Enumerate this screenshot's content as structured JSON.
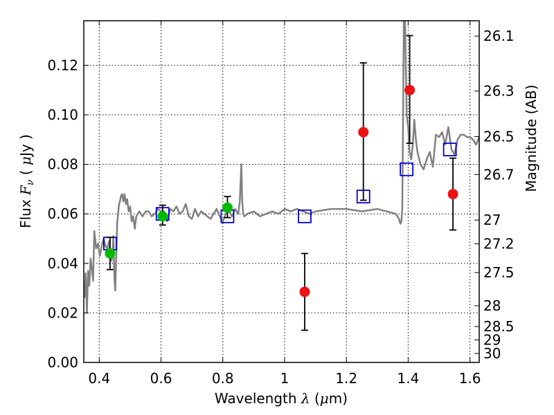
{
  "chart_data": {
    "type": "scatter",
    "xlim": [
      0.35,
      1.63
    ],
    "ylim": [
      0.0,
      0.138
    ],
    "grid": true,
    "xlabel": {
      "prefix": "Wavelength  ",
      "symbol": "λ",
      "mid": " (",
      "mu": "μ",
      "suffix": "m)"
    },
    "ylabel": {
      "prefix": "Flux  ",
      "symbol": "F",
      "sub": "ν",
      "mid": "  ( ",
      "mu": "μ",
      "suffix": "Jy )"
    },
    "y2label": "Magnitude (AB)",
    "xticks": [
      0.4,
      0.6,
      0.8,
      1.0,
      1.2,
      1.4,
      1.6
    ],
    "xtick_labels": [
      "0.4",
      "0.6",
      "0.8",
      "1",
      "1.2",
      "1.4",
      "1.6"
    ],
    "yticks": [
      0.0,
      0.02,
      0.04,
      0.06,
      0.08,
      0.1,
      0.12
    ],
    "ytick_labels": [
      "0.00",
      "0.02",
      "0.04",
      "0.06",
      "0.08",
      "0.10",
      "0.12"
    ],
    "mag_ticks": [
      {
        "label": "26.1",
        "flux": 0.1318
      },
      {
        "label": "26.3",
        "flux": 0.1096
      },
      {
        "label": "26.5",
        "flux": 0.0912
      },
      {
        "label": "26.7",
        "flux": 0.0759
      },
      {
        "label": "27",
        "flux": 0.0575
      },
      {
        "label": "27.2",
        "flux": 0.0479
      },
      {
        "label": "27.5",
        "flux": 0.0363
      },
      {
        "label": "28",
        "flux": 0.0229
      },
      {
        "label": "28.5",
        "flux": 0.0145
      },
      {
        "label": "29",
        "flux": 0.0091
      },
      {
        "label": "30",
        "flux": 0.0036
      }
    ],
    "colors": {
      "sed": "#808080",
      "model": "#0000cc",
      "green": "#00bb00",
      "red": "#ee1111",
      "errorbar": "#000000"
    },
    "series": [
      {
        "name": "sed_model",
        "kind": "line",
        "x": [
          0.352,
          0.356,
          0.36,
          0.364,
          0.368,
          0.372,
          0.376,
          0.38,
          0.384,
          0.39,
          0.396,
          0.402,
          0.408,
          0.414,
          0.42,
          0.426,
          0.432,
          0.436,
          0.44,
          0.443,
          0.446,
          0.449,
          0.452,
          0.455,
          0.458,
          0.461,
          0.464,
          0.467,
          0.47,
          0.474,
          0.478,
          0.482,
          0.486,
          0.49,
          0.495,
          0.5,
          0.505,
          0.51,
          0.515,
          0.52,
          0.53,
          0.54,
          0.55,
          0.56,
          0.57,
          0.58,
          0.59,
          0.6,
          0.61,
          0.62,
          0.63,
          0.64,
          0.65,
          0.66,
          0.67,
          0.68,
          0.69,
          0.7,
          0.71,
          0.72,
          0.73,
          0.74,
          0.75,
          0.76,
          0.77,
          0.78,
          0.79,
          0.8,
          0.81,
          0.82,
          0.83,
          0.84,
          0.85,
          0.855,
          0.86,
          0.863,
          0.866,
          0.87,
          0.88,
          0.9,
          0.92,
          0.94,
          0.96,
          0.98,
          1.0,
          1.02,
          1.04,
          1.06,
          1.08,
          1.1,
          1.15,
          1.2,
          1.25,
          1.3,
          1.33,
          1.36,
          1.37,
          1.375,
          1.378,
          1.381,
          1.383,
          1.386,
          1.39,
          1.395,
          1.4,
          1.405,
          1.41,
          1.415,
          1.42,
          1.425,
          1.43,
          1.44,
          1.45,
          1.46,
          1.47,
          1.48,
          1.49,
          1.5,
          1.51,
          1.52,
          1.53,
          1.54,
          1.55,
          1.56,
          1.57,
          1.58,
          1.59,
          1.6,
          1.61,
          1.62,
          1.63
        ],
        "y": [
          0.026,
          0.036,
          0.02,
          0.037,
          0.031,
          0.042,
          0.038,
          0.033,
          0.053,
          0.046,
          0.048,
          0.043,
          0.047,
          0.05,
          0.047,
          0.046,
          0.049,
          0.044,
          0.041,
          0.044,
          0.051,
          0.034,
          0.029,
          0.042,
          0.056,
          0.06,
          0.064,
          0.065,
          0.067,
          0.068,
          0.065,
          0.068,
          0.064,
          0.066,
          0.061,
          0.063,
          0.057,
          0.059,
          0.054,
          0.059,
          0.061,
          0.059,
          0.061,
          0.061,
          0.059,
          0.06,
          0.062,
          0.061,
          0.061,
          0.057,
          0.062,
          0.061,
          0.063,
          0.06,
          0.061,
          0.064,
          0.059,
          0.058,
          0.062,
          0.059,
          0.061,
          0.06,
          0.059,
          0.058,
          0.06,
          0.062,
          0.059,
          0.057,
          0.06,
          0.061,
          0.059,
          0.062,
          0.06,
          0.065,
          0.08,
          0.065,
          0.06,
          0.059,
          0.06,
          0.061,
          0.059,
          0.06,
          0.061,
          0.06,
          0.062,
          0.061,
          0.062,
          0.061,
          0.06,
          0.061,
          0.062,
          0.062,
          0.061,
          0.062,
          0.061,
          0.06,
          0.058,
          0.056,
          0.057,
          0.062,
          0.09,
          0.138,
          0.138,
          0.1,
          0.095,
          0.085,
          0.082,
          0.088,
          0.098,
          0.09,
          0.085,
          0.08,
          0.078,
          0.082,
          0.085,
          0.079,
          0.092,
          0.091,
          0.093,
          0.088,
          0.095,
          0.086,
          0.084,
          0.09,
          0.092,
          0.092,
          0.091,
          0.091,
          0.09,
          0.088,
          0.091
        ]
      },
      {
        "name": "model_photometry",
        "kind": "square",
        "x": [
          0.435,
          0.605,
          0.815,
          1.065,
          1.255,
          1.395,
          1.535
        ],
        "y": [
          0.048,
          0.06,
          0.059,
          0.059,
          0.067,
          0.078,
          0.086
        ]
      },
      {
        "name": "observed_green",
        "kind": "point",
        "x": [
          0.435,
          0.605,
          0.815
        ],
        "y": [
          0.044,
          0.059,
          0.0625
        ],
        "err_low": [
          0.0065,
          0.0035,
          0.004
        ],
        "err_high": [
          0.0065,
          0.0045,
          0.0045
        ]
      },
      {
        "name": "observed_red",
        "kind": "point",
        "x": [
          1.065,
          1.255,
          1.405,
          1.545
        ],
        "y": [
          0.0285,
          0.093,
          0.11,
          0.068
        ],
        "err_low": [
          0.0155,
          0.0275,
          0.0215,
          0.0145
        ],
        "err_high": [
          0.0155,
          0.028,
          0.022,
          0.0145
        ]
      }
    ]
  }
}
